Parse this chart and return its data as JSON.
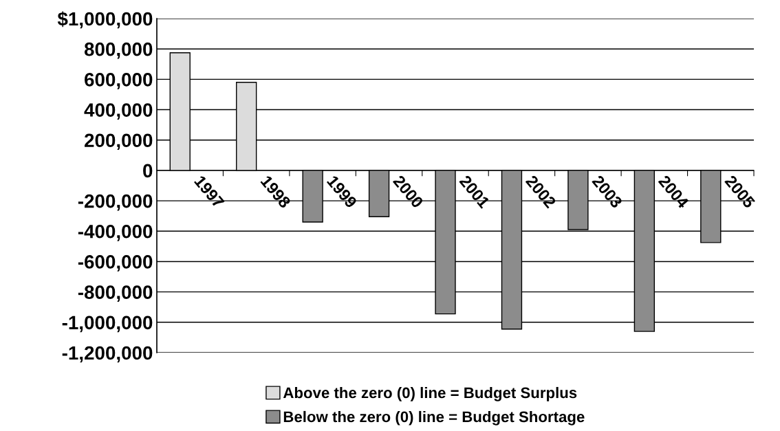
{
  "chart_data": {
    "type": "bar",
    "categories": [
      "1997",
      "1998",
      "1999",
      "2000",
      "2001",
      "2002",
      "2003",
      "2004",
      "2005"
    ],
    "series": [
      {
        "name": "Above the zero (0) line = Budget Surplus",
        "color": "#dcdcdc",
        "values": [
          775000,
          580000,
          null,
          null,
          null,
          null,
          null,
          null,
          null
        ]
      },
      {
        "name": "Below the zero (0) line = Budget Shortage",
        "color": "#8c8c8c",
        "values": [
          null,
          null,
          -340000,
          -305000,
          -945000,
          -1045000,
          -390000,
          -1060000,
          -475000
        ]
      }
    ],
    "ylim": [
      -1200000,
      1000000
    ],
    "yticks": [
      {
        "value": 1000000,
        "label": "$1,000,000"
      },
      {
        "value": 800000,
        "label": "800,000"
      },
      {
        "value": 600000,
        "label": "600,000"
      },
      {
        "value": 400000,
        "label": "400,000"
      },
      {
        "value": 200000,
        "label": "200,000"
      },
      0,
      {
        "value": -200000,
        "label": "-200,000"
      },
      {
        "value": -400000,
        "label": "-400,000"
      },
      {
        "value": -600000,
        "label": "-600,000"
      },
      {
        "value": -800000,
        "label": "-800,000"
      },
      {
        "value": -1000000,
        "label": "-1,000,000"
      },
      {
        "value": -1200000,
        "label": "-1,200,000"
      }
    ],
    "grid": "y",
    "legend": "bottom"
  }
}
